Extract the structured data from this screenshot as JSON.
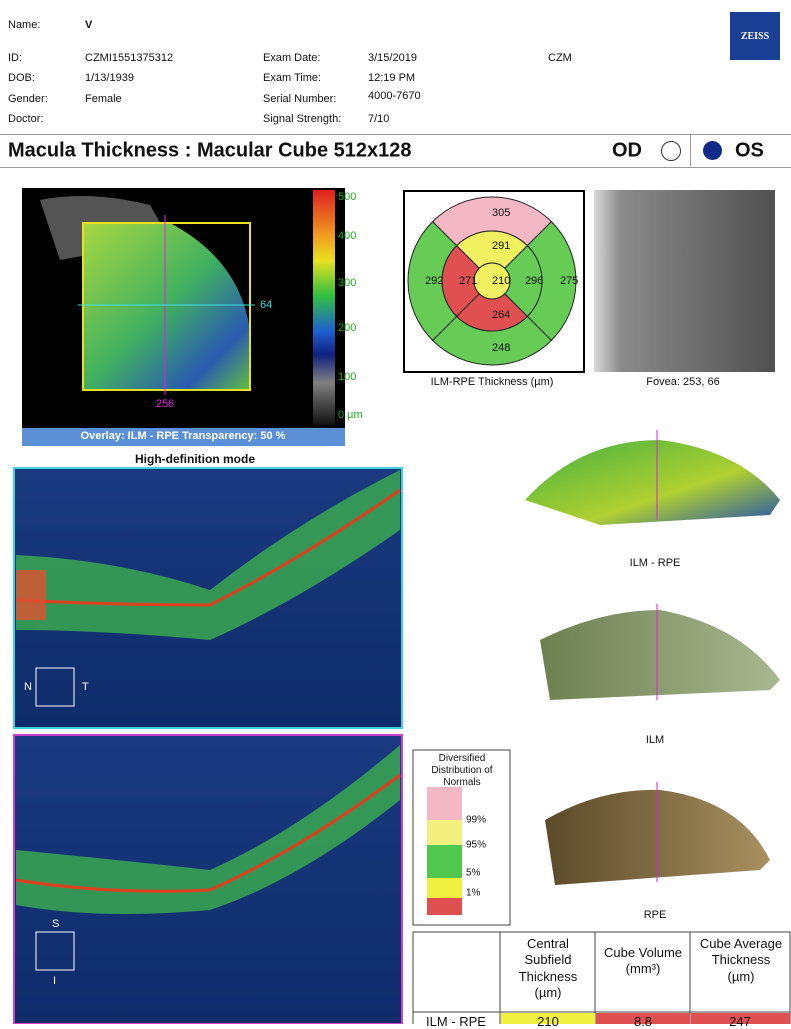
{
  "header": {
    "name_label": "Name:",
    "name": "V",
    "logo": "ZEISS",
    "site": "CZM",
    "patient": [
      {
        "label": "ID:",
        "value": "CZMI1551375312"
      },
      {
        "label": "DOB:",
        "value": "1/13/1939"
      },
      {
        "label": "Gender:",
        "value": "Female"
      },
      {
        "label": "Doctor:"
      }
    ],
    "exam": [
      {
        "label": "Exam Date:",
        "value": "3/15/2019"
      },
      {
        "label": "Exam Time:",
        "value": "12:19 PM"
      },
      {
        "label": "Serial Number:",
        "value": "4000-7670"
      },
      {
        "label": "Signal Strength:",
        "value": "7/10"
      }
    ]
  },
  "title": {
    "text": "Macula Thickness : Macular Cube 512x128",
    "od": "OD",
    "os": "OS"
  },
  "fundus": {
    "scale": [
      "500",
      "400",
      "300",
      "200",
      "100",
      "0 µm"
    ],
    "h_line": "64",
    "v_line": "256",
    "overlay": "Overlay: ILM - RPE  Transparency: 50 %",
    "mode": "High-definition mode"
  },
  "grid": {
    "superior_outer": "305",
    "superior_inner": "291",
    "nasal_outer": "292",
    "nasal_inner": "271",
    "center": "210",
    "temporal_inner": "296",
    "temporal_outer": "275",
    "inferior_inner": "264",
    "inferior_outer": "248",
    "caption": "ILM-RPE Thickness (µm)"
  },
  "fovea": "Fovea: 253, 66",
  "bscan": {
    "n": "N",
    "t": "T",
    "s": "S",
    "i": "I"
  },
  "surfaces": [
    "ILM - RPE",
    "ILM",
    "RPE"
  ],
  "legend": {
    "title": "Diversified Distribution of Normals",
    "levels": [
      "99%",
      "95%",
      "5%",
      "1%"
    ]
  },
  "table": {
    "headers": [
      "Central Subfield Thickness (µm)",
      "Cube Volume (mm³)",
      "Cube Average Thickness (µm)"
    ],
    "row": {
      "label": "ILM - RPE",
      "values": [
        "210",
        "8.8",
        "247"
      ]
    }
  }
}
